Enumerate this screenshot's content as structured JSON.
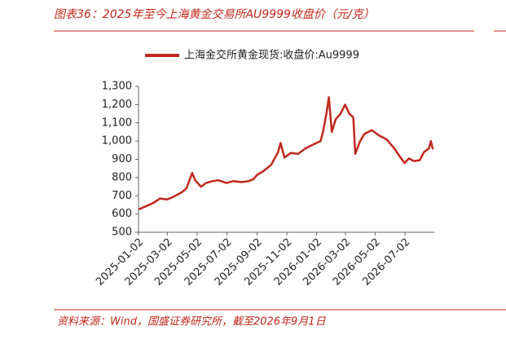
{
  "chart_data": {
    "type": "line",
    "title": "图表36：2025年至今上海黄金交易所AU9999收盘价（元/克）",
    "source": "资料来源：Wind，国盛证券研究所，截至2026年9月1日",
    "x": [
      "2025-01-02",
      "2025-01-15",
      "2025-02-01",
      "2025-02-15",
      "2025-03-02",
      "2025-03-15",
      "2025-04-01",
      "2025-04-10",
      "2025-04-22",
      "2025-04-28",
      "2025-05-10",
      "2025-05-20",
      "2025-06-02",
      "2025-06-15",
      "2025-07-01",
      "2025-07-15",
      "2025-08-01",
      "2025-08-15",
      "2025-08-25",
      "2025-09-02",
      "2025-09-15",
      "2025-10-01",
      "2025-10-15",
      "2025-10-20",
      "2025-10-28",
      "2025-11-10",
      "2025-11-25",
      "2025-12-10",
      "2025-12-25",
      "2026-01-10",
      "2026-01-15",
      "2026-01-22",
      "2026-01-27",
      "2026-02-02",
      "2026-02-10",
      "2026-02-20",
      "2026-03-01",
      "2026-03-10",
      "2026-03-18",
      "2026-03-22",
      "2026-04-01",
      "2026-04-10",
      "2026-04-25",
      "2026-05-10",
      "2026-05-25",
      "2026-06-10",
      "2026-06-20",
      "2026-07-01",
      "2026-07-10",
      "2026-07-20",
      "2026-08-01",
      "2026-08-10",
      "2026-08-20",
      "2026-08-24",
      "2026-08-28"
    ],
    "series": [
      {
        "name": "上海金交所黄金现货:收盘价:Au9999",
        "color": "#c0281c",
        "values": [
          625,
          640,
          660,
          685,
          680,
          695,
          720,
          740,
          825,
          785,
          750,
          770,
          780,
          785,
          770,
          780,
          775,
          780,
          790,
          815,
          835,
          870,
          940,
          990,
          910,
          935,
          930,
          960,
          980,
          1000,
          1050,
          1150,
          1240,
          1050,
          1120,
          1150,
          1200,
          1150,
          1130,
          930,
          1000,
          1040,
          1060,
          1030,
          1010,
          960,
          920,
          880,
          905,
          890,
          895,
          940,
          960,
          1000,
          955
        ]
      }
    ],
    "xlim": [
      "2025-01-02",
      "2026-08-31"
    ],
    "xticks": [
      "2025-01-02",
      "2025-03-02",
      "2025-05-02",
      "2025-07-02",
      "2025-09-02",
      "2025-11-02",
      "2026-01-02",
      "2026-03-02",
      "2026-05-02",
      "2026-07-02"
    ],
    "ylim": [
      500,
      1300
    ],
    "yticks": [
      500,
      600,
      700,
      800,
      900,
      {
        "value": 1000,
        "label": "1,000"
      },
      {
        "value": 1100,
        "label": "1,100"
      },
      {
        "value": 1200,
        "label": "1,200"
      },
      {
        "value": 1300,
        "label": "1,300"
      }
    ],
    "grid": false
  }
}
